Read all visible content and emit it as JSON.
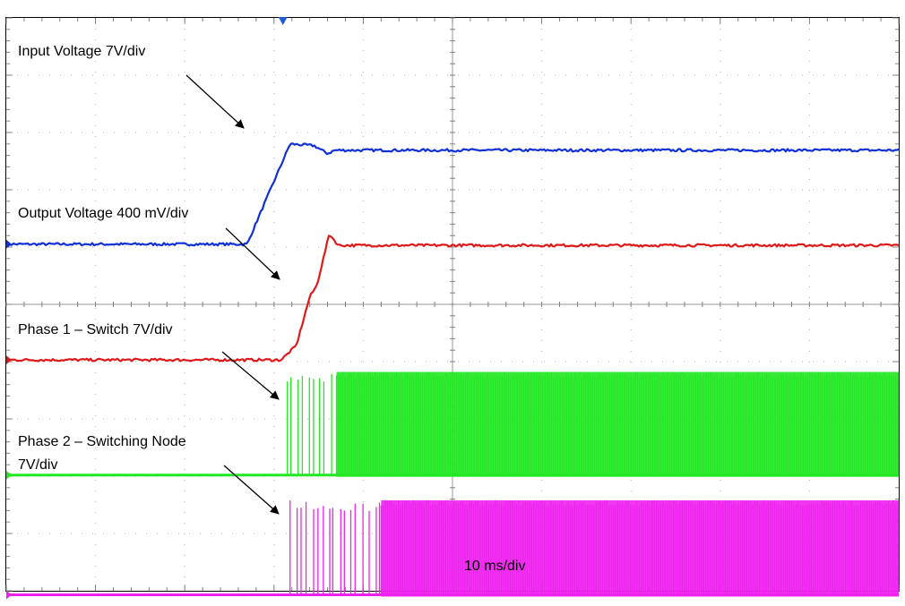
{
  "chart_data": {
    "type": "line",
    "title": "",
    "time_base_label": "10 ms/div",
    "x_divisions": 10,
    "y_divisions": 10,
    "grid": true,
    "channels": [
      {
        "name": "Input Voltage",
        "label": "Input Voltage 7V/div",
        "scale_label": "7V/div",
        "color": "#1030d8",
        "kind": "ramp",
        "points": [
          [
            0.0,
            0.0
          ],
          [
            2.7,
            0.0
          ],
          [
            2.78,
            0.3
          ],
          [
            3.18,
            1.75
          ],
          [
            3.45,
            1.72
          ],
          [
            3.6,
            1.58
          ],
          [
            3.68,
            1.64
          ],
          [
            10.0,
            1.64
          ]
        ],
        "baseline_div": 3.95
      },
      {
        "name": "Output Voltage",
        "label": "Output Voltage 400 mV/div",
        "scale_label": "400 mV/div",
        "color": "#dd1a1a",
        "kind": "ramp",
        "points": [
          [
            0.0,
            0.0
          ],
          [
            3.08,
            0.0
          ],
          [
            3.25,
            0.25
          ],
          [
            3.4,
            1.1
          ],
          [
            3.48,
            1.3
          ],
          [
            3.62,
            2.2
          ],
          [
            3.72,
            2.0
          ],
          [
            10.0,
            2.0
          ]
        ],
        "baseline_div": 5.97
      },
      {
        "name": "Phase 1 – Switch",
        "label": "Phase 1 – Switch 7V/div",
        "scale_label": "7V/div",
        "color": "#22e822",
        "kind": "switching",
        "start_div": 3.15,
        "sparse_until_div": 3.7,
        "amplitude_div": 1.8,
        "baseline_div": 7.98
      },
      {
        "name": "Phase 2 – Switching Node",
        "label": "Phase 2 – Switching Node 7V/div",
        "label_lines": [
          "Phase 2 – Switching Node",
          "7V/div"
        ],
        "scale_label": "7V/div",
        "color": "#ee22ee",
        "kind": "switching",
        "start_div": 3.18,
        "sparse_until_div": 4.2,
        "amplitude_div": 1.65,
        "baseline_div": 10.07
      }
    ]
  }
}
